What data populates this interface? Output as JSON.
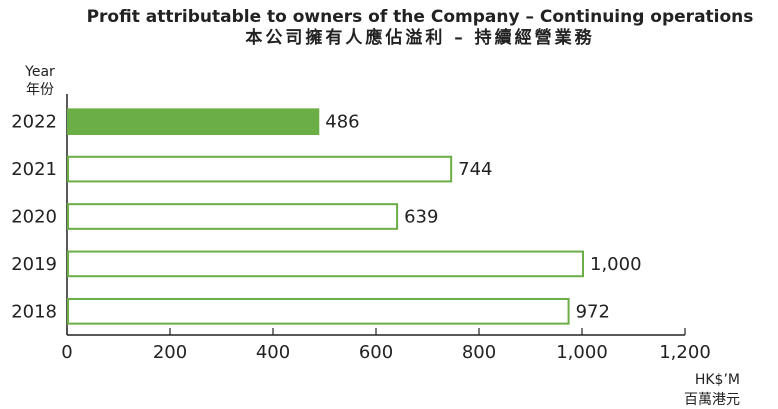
{
  "chart_data": {
    "type": "bar",
    "orientation": "horizontal",
    "title": "Profit attributable to owners of the Company – Continuing operations",
    "subtitle": "本公司擁有人應佔溢利 – 持續經營業務",
    "y_label": [
      "Year",
      "年份"
    ],
    "x_label": [
      "HK$’M",
      "百萬港元"
    ],
    "categories": [
      "2022",
      "2021",
      "2020",
      "2019",
      "2018"
    ],
    "values": [
      486,
      744,
      639,
      1000,
      972
    ],
    "value_labels": [
      "486",
      "744",
      "639",
      "1,000",
      "972"
    ],
    "color": "#6aae45",
    "bar_fills": [
      "#6aae45",
      "#ffffff",
      "#ffffff",
      "#ffffff",
      "#ffffff"
    ],
    "xlim": [
      0,
      1200
    ],
    "xticks": [
      0,
      200,
      400,
      600,
      800,
      {
        "value": 1000,
        "label": "1,000"
      },
      {
        "value": 1200,
        "label": "1,200"
      }
    ]
  }
}
